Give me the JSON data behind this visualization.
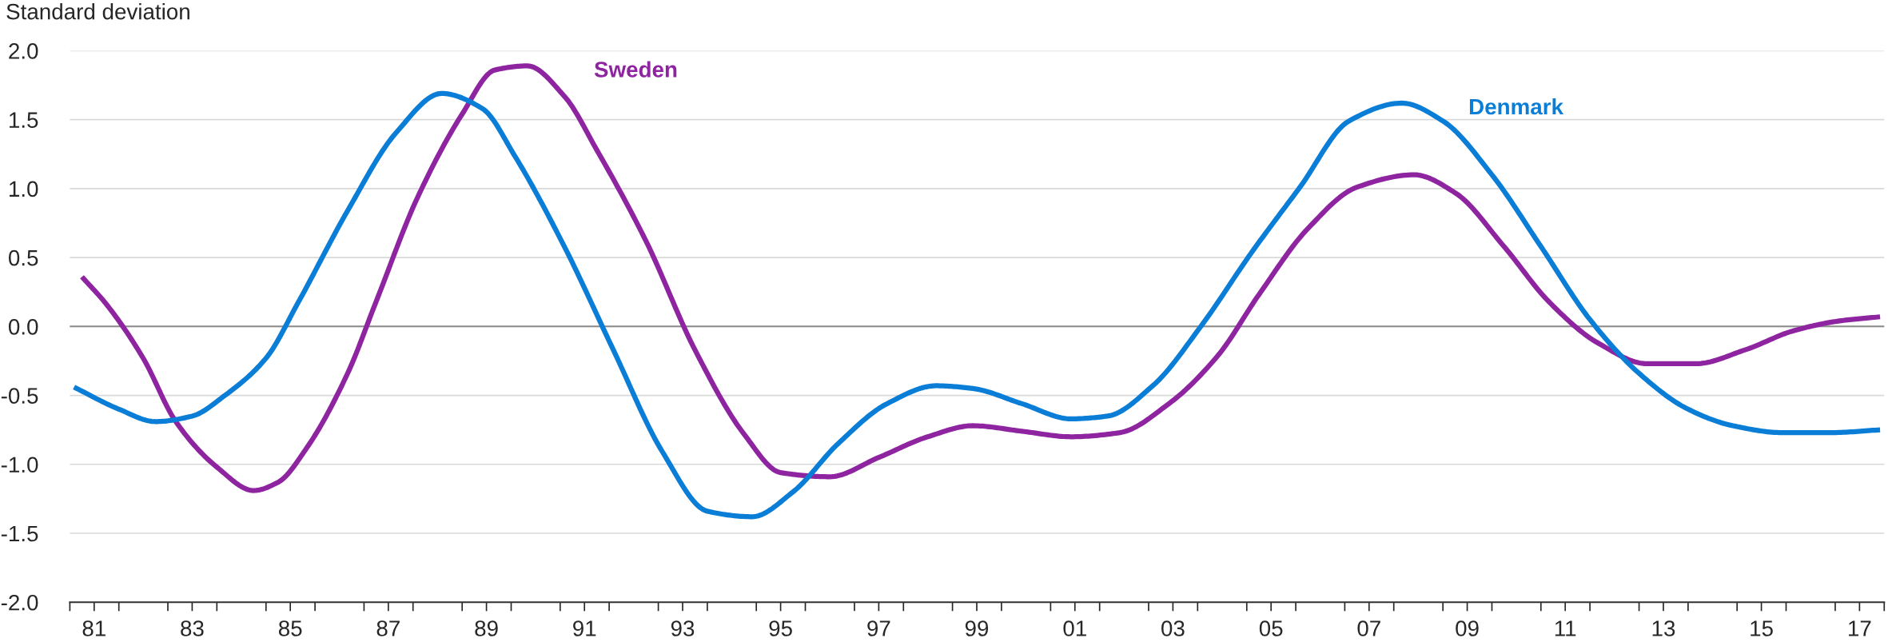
{
  "chart_data": {
    "type": "line",
    "ylabel": "Standard deviation",
    "xlim": [
      "1981-01-01",
      "2018-01-01"
    ],
    "xticks": [
      {
        "value": "1981-01-01",
        "label": null
      },
      {
        "value": "1981-07-01",
        "label": "81"
      },
      {
        "value": "1982-01-01",
        "label": null
      },
      {
        "value": "1983-01-01",
        "label": null
      },
      {
        "value": "1983-07-01",
        "label": "83"
      },
      {
        "value": "1984-01-01",
        "label": null
      },
      {
        "value": "1985-01-01",
        "label": null
      },
      {
        "value": "1985-07-01",
        "label": "85"
      },
      {
        "value": "1986-01-01",
        "label": null
      },
      {
        "value": "1987-01-01",
        "label": null
      },
      {
        "value": "1987-07-01",
        "label": "87"
      },
      {
        "value": "1988-01-01",
        "label": null
      },
      {
        "value": "1989-01-01",
        "label": null
      },
      {
        "value": "1989-07-01",
        "label": "89"
      },
      {
        "value": "1990-01-01",
        "label": null
      },
      {
        "value": "1991-01-01",
        "label": null
      },
      {
        "value": "1991-07-01",
        "label": "91"
      },
      {
        "value": "1992-01-01",
        "label": null
      },
      {
        "value": "1993-01-01",
        "label": null
      },
      {
        "value": "1993-07-01",
        "label": "93"
      },
      {
        "value": "1994-01-01",
        "label": null
      },
      {
        "value": "1995-01-01",
        "label": null
      },
      {
        "value": "1995-07-01",
        "label": "95"
      },
      {
        "value": "1996-01-01",
        "label": null
      },
      {
        "value": "1997-01-01",
        "label": null
      },
      {
        "value": "1997-07-01",
        "label": "97"
      },
      {
        "value": "1998-01-01",
        "label": null
      },
      {
        "value": "1999-01-01",
        "label": null
      },
      {
        "value": "1999-07-01",
        "label": "99"
      },
      {
        "value": "2000-01-01",
        "label": null
      },
      {
        "value": "2001-01-01",
        "label": null
      },
      {
        "value": "2001-07-01",
        "label": "01"
      },
      {
        "value": "2002-01-01",
        "label": null
      },
      {
        "value": "2003-01-01",
        "label": null
      },
      {
        "value": "2003-07-01",
        "label": "03"
      },
      {
        "value": "2004-01-01",
        "label": null
      },
      {
        "value": "2005-01-01",
        "label": null
      },
      {
        "value": "2005-07-01",
        "label": "05"
      },
      {
        "value": "2006-01-01",
        "label": null
      },
      {
        "value": "2007-01-01",
        "label": null
      },
      {
        "value": "2007-07-01",
        "label": "07"
      },
      {
        "value": "2008-01-01",
        "label": null
      },
      {
        "value": "2009-01-01",
        "label": null
      },
      {
        "value": "2009-07-01",
        "label": "09"
      },
      {
        "value": "2010-01-01",
        "label": null
      },
      {
        "value": "2011-01-01",
        "label": null
      },
      {
        "value": "2011-07-01",
        "label": "11"
      },
      {
        "value": "2012-01-01",
        "label": null
      },
      {
        "value": "2013-01-01",
        "label": null
      },
      {
        "value": "2013-07-01",
        "label": "13"
      },
      {
        "value": "2014-01-01",
        "label": null
      },
      {
        "value": "2015-01-01",
        "label": null
      },
      {
        "value": "2015-07-01",
        "label": "15"
      },
      {
        "value": "2016-01-01",
        "label": null
      },
      {
        "value": "2017-01-01",
        "label": null
      },
      {
        "value": "2017-07-01",
        "label": "17"
      },
      {
        "value": "2018-01-01",
        "label": null
      }
    ],
    "ylim": [
      -2.0,
      2.0
    ],
    "yticks": [
      {
        "value": -2.0,
        "label": "-2.0"
      },
      {
        "value": -1.5,
        "label": "-1.5"
      },
      {
        "value": -1.0,
        "label": "-1.0"
      },
      {
        "value": -0.5,
        "label": "-0.5"
      },
      {
        "value": 0.0,
        "label": "0.0"
      },
      {
        "value": 0.5,
        "label": "0.5"
      },
      {
        "value": 1.0,
        "label": "1.0"
      },
      {
        "value": 1.5,
        "label": "1.5"
      },
      {
        "value": 2.0,
        "label": "2.0"
      }
    ],
    "grid": "y",
    "ref_lines": [
      {
        "axis": "y",
        "value": 0,
        "color": "#8c8c8c"
      }
    ],
    "series": [
      {
        "name": "Sweden",
        "color": "#8e24a0",
        "x": [
          "1981-04",
          "1981-10",
          "1982-07",
          "1983-03",
          "1984-01",
          "1984-10",
          "1985-04",
          "1985-11",
          "1986-09",
          "1987-04",
          "1988-02",
          "1989-01",
          "1989-09",
          "1990-05",
          "1991-02",
          "1991-10",
          "1992-10",
          "1993-10",
          "1994-10",
          "1995-07",
          "1996-07",
          "1997-07",
          "1998-07",
          "1999-06",
          "2000-06",
          "2001-06",
          "2002-06",
          "2003-06",
          "2004-06",
          "2005-04",
          "2006-04",
          "2007-04",
          "2008-06",
          "2009-04",
          "2010-04",
          "2011-03",
          "2012-03",
          "2013-03",
          "2014-03",
          "2015-03",
          "2016-03",
          "2017-02",
          "2017-12"
        ],
        "values": [
          0.36,
          0.16,
          -0.23,
          -0.69,
          -1.02,
          -1.19,
          -1.13,
          -0.88,
          -0.34,
          0.18,
          0.93,
          1.54,
          1.86,
          1.89,
          1.67,
          1.28,
          0.62,
          -0.17,
          -0.78,
          -1.06,
          -1.09,
          -0.95,
          -0.8,
          -0.72,
          -0.76,
          -0.8,
          -0.77,
          -0.56,
          -0.21,
          0.23,
          0.71,
          1.01,
          1.1,
          0.97,
          0.58,
          0.18,
          -0.12,
          -0.27,
          -0.27,
          -0.17,
          -0.03,
          0.04,
          0.07
        ]
      },
      {
        "name": "Denmark",
        "color": "#0a7dd6",
        "x": [
          "1981-02",
          "1982-01",
          "1982-10",
          "1983-07",
          "1984-03",
          "1985-01",
          "1985-09",
          "1986-09",
          "1987-09",
          "1988-08",
          "1989-06",
          "1990-02",
          "1991-02",
          "1992-02",
          "1993-02",
          "1994-01",
          "1994-12",
          "1995-10",
          "1996-09",
          "1997-09",
          "1998-09",
          "1999-06",
          "2000-06",
          "2001-06",
          "2002-03",
          "2003-02",
          "2004-02",
          "2005-02",
          "2006-02",
          "2007-02",
          "2008-03",
          "2009-01",
          "2010-01",
          "2011-01",
          "2012-01",
          "2013-01",
          "2014-01",
          "2014-12",
          "2015-12",
          "2016-12",
          "2017-12"
        ],
        "values": [
          -0.44,
          -0.6,
          -0.69,
          -0.65,
          -0.5,
          -0.23,
          0.18,
          0.84,
          1.41,
          1.69,
          1.58,
          1.23,
          0.58,
          -0.17,
          -0.91,
          -1.34,
          -1.38,
          -1.2,
          -0.85,
          -0.56,
          -0.43,
          -0.45,
          -0.56,
          -0.67,
          -0.65,
          -0.43,
          0.01,
          0.53,
          1.01,
          1.49,
          1.62,
          1.49,
          1.1,
          0.58,
          0.05,
          -0.34,
          -0.6,
          -0.72,
          -0.77,
          -0.77,
          -0.75
        ]
      }
    ]
  }
}
